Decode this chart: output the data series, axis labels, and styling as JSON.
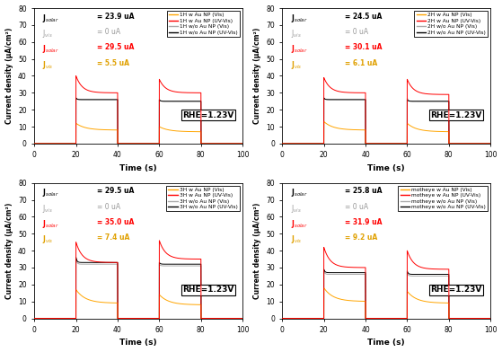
{
  "subplots": [
    {
      "legend_prefix": "1H",
      "ann": [
        {
          "label": "J$_{solar}$",
          "val": "= 23.9 uA",
          "color": "black",
          "bold": true
        },
        {
          "label": "J$_{vis}$",
          "val": "= 0 uA",
          "color": "#999999",
          "bold": false
        },
        {
          "label": "J$_{solar}$",
          "val": "= 29.5 uA",
          "color": "#FF0000",
          "bold": true
        },
        {
          "label": "J$_{vis}$",
          "val": "= 5.5 uA",
          "color": "#E0A000",
          "bold": true
        }
      ],
      "curves": {
        "orange": {
          "peak1": 12,
          "steady1": 8,
          "peak2": 10,
          "steady2": 7
        },
        "red": {
          "peak1": 40,
          "steady1": 30,
          "peak2": 38,
          "steady2": 30
        },
        "gray": {
          "peak1": 27,
          "steady1": 26,
          "peak2": 26,
          "steady2": 25
        },
        "black": {
          "peak1": 27,
          "steady1": 26,
          "peak2": 26,
          "steady2": 25
        }
      }
    },
    {
      "legend_prefix": "2H",
      "ann": [
        {
          "label": "J$_{solar}$",
          "val": "= 24.5 uA",
          "color": "black",
          "bold": true
        },
        {
          "label": "J$_{vis}$",
          "val": "= 0 uA",
          "color": "#999999",
          "bold": false
        },
        {
          "label": "J$_{solar}$",
          "val": "= 30.1 uA",
          "color": "#FF0000",
          "bold": true
        },
        {
          "label": "J$_{vis}$",
          "val": "= 6.1 uA",
          "color": "#E0A000",
          "bold": true
        }
      ],
      "curves": {
        "orange": {
          "peak1": 13,
          "steady1": 8,
          "peak2": 12,
          "steady2": 7
        },
        "red": {
          "peak1": 39,
          "steady1": 30,
          "peak2": 38,
          "steady2": 29
        },
        "gray": {
          "peak1": 27,
          "steady1": 26,
          "peak2": 27,
          "steady2": 25
        },
        "black": {
          "peak1": 27,
          "steady1": 26,
          "peak2": 26,
          "steady2": 25
        }
      }
    },
    {
      "legend_prefix": "3H",
      "ann": [
        {
          "label": "J$_{solar}$",
          "val": "= 29.5 uA",
          "color": "black",
          "bold": true
        },
        {
          "label": "J$_{vis}$",
          "val": "= 0 uA",
          "color": "#999999",
          "bold": false
        },
        {
          "label": "J$_{solar}$",
          "val": "= 35.0 uA",
          "color": "#FF0000",
          "bold": true
        },
        {
          "label": "J$_{vis}$",
          "val": "= 7.4 uA",
          "color": "#E0A000",
          "bold": true
        }
      ],
      "curves": {
        "orange": {
          "peak1": 17,
          "steady1": 9,
          "peak2": 14,
          "steady2": 8
        },
        "red": {
          "peak1": 45,
          "steady1": 33,
          "peak2": 46,
          "steady2": 35
        },
        "gray": {
          "peak1": 35,
          "steady1": 32,
          "peak2": 32,
          "steady2": 31
        },
        "black": {
          "peak1": 36,
          "steady1": 33,
          "peak2": 33,
          "steady2": 32
        }
      }
    },
    {
      "legend_prefix": "motheye",
      "ann": [
        {
          "label": "J$_{solar}$",
          "val": "= 25.8 uA",
          "color": "black",
          "bold": true
        },
        {
          "label": "J$_{vis}$",
          "val": "= 0 uA",
          "color": "#999999",
          "bold": false
        },
        {
          "label": "J$_{solar}$",
          "val": "= 31.9 uA",
          "color": "#FF0000",
          "bold": true
        },
        {
          "label": "J$_{vis}$",
          "val": "= 9.2 uA",
          "color": "#E0A000",
          "bold": true
        }
      ],
      "curves": {
        "orange": {
          "peak1": 18,
          "steady1": 10,
          "peak2": 16,
          "steady2": 9
        },
        "red": {
          "peak1": 42,
          "steady1": 30,
          "peak2": 40,
          "steady2": 29
        },
        "gray": {
          "peak1": 28,
          "steady1": 26,
          "peak2": 27,
          "steady2": 25
        },
        "black": {
          "peak1": 29,
          "steady1": 27,
          "peak2": 28,
          "steady2": 26
        }
      }
    }
  ],
  "ylim": [
    0,
    80
  ],
  "xlim": [
    0,
    100
  ],
  "yticks": [
    0,
    10,
    20,
    30,
    40,
    50,
    60,
    70,
    80
  ],
  "xticks": [
    0,
    20,
    40,
    60,
    80,
    100
  ],
  "xlabel": "Time (s)",
  "ylabel": "Current density (μA/cm²)",
  "rhe_text": "RHE=1.23V",
  "colors": {
    "orange": "#FFA500",
    "red": "#FF0000",
    "gray": "#AAAAAA",
    "black": "#000000"
  }
}
